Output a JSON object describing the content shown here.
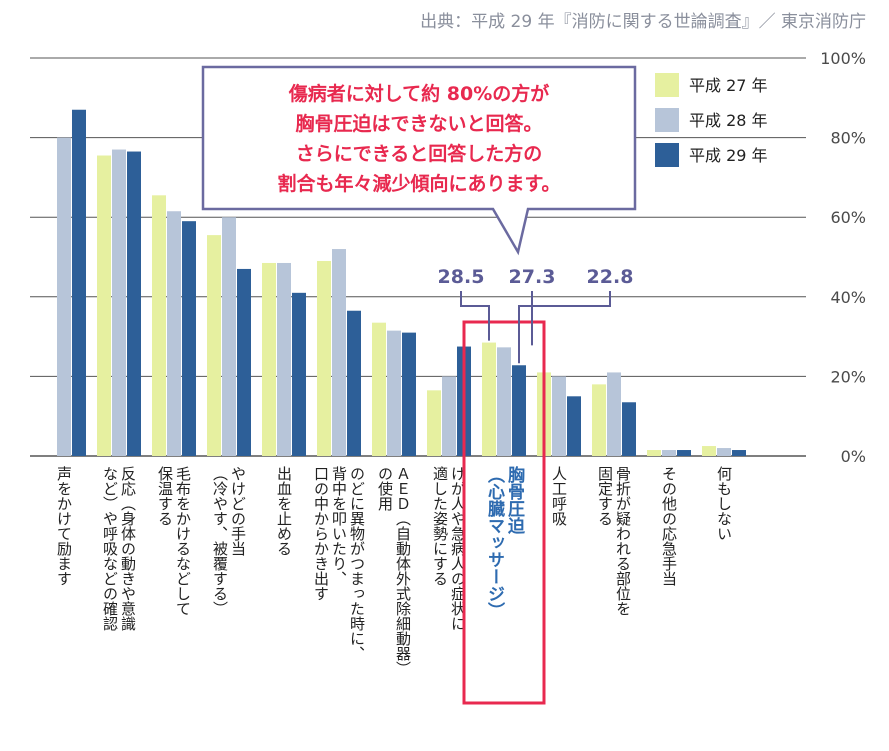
{
  "source": "出典：平成 29 年『消防に関する世論調査』／ 東京消防庁",
  "chart_data": {
    "type": "bar",
    "ylim": [
      0,
      100
    ],
    "yticks": [
      "0%",
      "20%",
      "40%",
      "60%",
      "80%",
      "100%"
    ],
    "legend_position": "top-right",
    "grid": true,
    "categories": [
      [
        "声をかけて励ます"
      ],
      [
        "反応（身体の動きや意識",
        "など）や呼吸などの確認"
      ],
      [
        "毛布をかけるなどして",
        "保温する"
      ],
      [
        "やけどの手当",
        "（冷やす、被覆する）"
      ],
      [
        "出血を止める"
      ],
      [
        "のどに異物がつまった時に、",
        "背中を叩いたり、",
        "口の中からかき出す"
      ],
      [
        "ＡＥＤ（自動体外式除細動器）",
        "の使用"
      ],
      [
        "けが人や急病人の症状に",
        "適した姿勢にする"
      ],
      [
        "胸骨圧迫",
        "（心臓マッサージ）"
      ],
      [
        "人工呼吸"
      ],
      [
        "骨折が疑われる部位を",
        "固定する"
      ],
      [
        "その他の応急手当"
      ],
      [
        "何もしない"
      ]
    ],
    "highlight_index": 8,
    "series": [
      {
        "name": "平成 27 年",
        "color": "#e6f0a0",
        "values": [
          0,
          75.5,
          65.5,
          55.5,
          48.5,
          49,
          33.5,
          16.5,
          28.5,
          21,
          18,
          1.5,
          2.5
        ]
      },
      {
        "name": "平成 28 年",
        "color": "#b7c5d9",
        "values": [
          80,
          77,
          61.5,
          60,
          48.5,
          52,
          31.5,
          20,
          27.3,
          20,
          21,
          1.5,
          2
        ]
      },
      {
        "name": "平成 29 年",
        "color": "#2d5f98",
        "values": [
          87,
          76.5,
          59,
          47,
          41,
          36.5,
          31,
          27.5,
          22.8,
          15,
          13.5,
          1.5,
          1.5
        ]
      }
    ],
    "annotations": {
      "labels": [
        "28.5",
        "27.3",
        "22.8"
      ],
      "callout": [
        "傷病者に対して約 80%の方が",
        "胸骨圧迫はできないと回答。",
        "さらにできると回答した方の",
        "割合も年々減少傾向にあります。"
      ]
    }
  }
}
